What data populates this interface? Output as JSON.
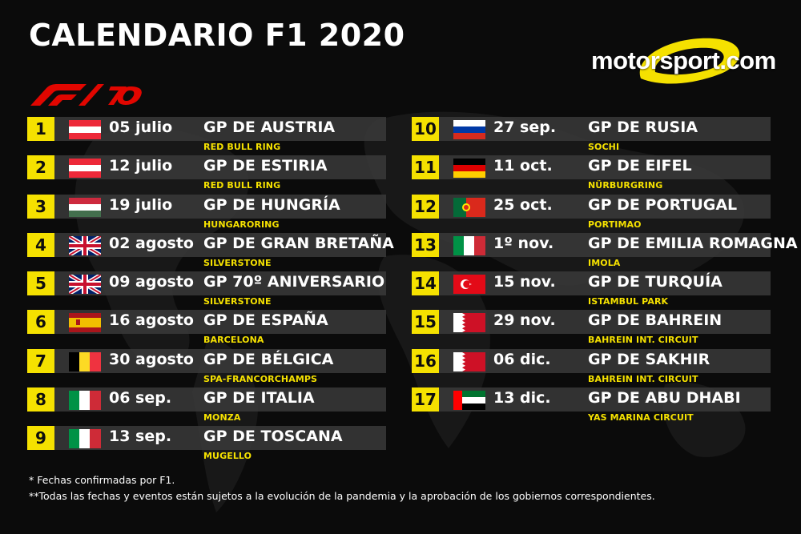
{
  "title": "CALENDARIO F1 2020",
  "brand": {
    "text": "motorsport.com",
    "swoosh_color": "#f5e100"
  },
  "logo": {
    "name": "F1 70 logo",
    "color": "#e10600"
  },
  "colors": {
    "accent": "#f5e100",
    "background": "#0b0b0b",
    "row": "#3a3a3a"
  },
  "races_left": [
    {
      "num": "1",
      "flag": "austria",
      "date": "05 julio",
      "gp": "GP DE AUSTRIA",
      "circuit": "RED BULL RING"
    },
    {
      "num": "2",
      "flag": "austria",
      "date": "12 julio",
      "gp": "GP DE ESTIRIA",
      "circuit": "RED BULL RING"
    },
    {
      "num": "3",
      "flag": "hungary",
      "date": "19 julio",
      "gp": "GP DE HUNGRÍA",
      "circuit": "HUNGARORING"
    },
    {
      "num": "4",
      "flag": "uk",
      "date": "02 agosto",
      "gp": "GP DE GRAN BRETAÑA",
      "circuit": "SILVERSTONE"
    },
    {
      "num": "5",
      "flag": "uk",
      "date": "09 agosto",
      "gp": "GP 70º ANIVERSARIO",
      "circuit": "SILVERSTONE"
    },
    {
      "num": "6",
      "flag": "spain",
      "date": "16 agosto",
      "gp": "GP DE ESPAÑA",
      "circuit": "BARCELONA"
    },
    {
      "num": "7",
      "flag": "belgium",
      "date": "30 agosto",
      "gp": "GP DE BÉLGICA",
      "circuit": "SPA-FRANCORCHAMPS"
    },
    {
      "num": "8",
      "flag": "italy",
      "date": "06 sep.",
      "gp": "GP DE ITALIA",
      "circuit": "MONZA"
    },
    {
      "num": "9",
      "flag": "italy",
      "date": "13 sep.",
      "gp": "GP DE TOSCANA",
      "circuit": "MUGELLO"
    }
  ],
  "races_right": [
    {
      "num": "10",
      "flag": "russia",
      "date": "27 sep.",
      "gp": "GP DE RUSIA",
      "circuit": "SOCHI"
    },
    {
      "num": "11",
      "flag": "germany",
      "date": "11 oct.",
      "gp": "GP DE EIFEL",
      "circuit": "NÜRBURGRING"
    },
    {
      "num": "12",
      "flag": "portugal",
      "date": "25 oct.",
      "gp": "GP DE PORTUGAL",
      "circuit": "PORTIMAO"
    },
    {
      "num": "13",
      "flag": "italy",
      "date": "1º  nov.",
      "gp": "GP DE EMILIA ROMAGNA",
      "circuit": "IMOLA"
    },
    {
      "num": "14",
      "flag": "turkey",
      "date": "15 nov.",
      "gp": "GP DE TURQUÍA",
      "circuit": "ISTAMBUL PARK"
    },
    {
      "num": "15",
      "flag": "bahrain",
      "date": "29 nov.",
      "gp": "GP DE BAHREIN",
      "circuit": "BAHREIN INT. CIRCUIT"
    },
    {
      "num": "16",
      "flag": "bahrain",
      "date": "06 dic.",
      "gp": "GP DE SAKHIR",
      "circuit": "BAHREIN INT. CIRCUIT"
    },
    {
      "num": "17",
      "flag": "uae",
      "date": "13 dic.",
      "gp": "GP DE ABU DHABI",
      "circuit": "YAS MARINA CIRCUIT"
    }
  ],
  "notes": {
    "line1": "* Fechas confirmadas por F1.",
    "line2": "**Todas las fechas y eventos están sujetos a la evolución de la pandemia y la aprobación de los gobiernos correspondientes."
  }
}
